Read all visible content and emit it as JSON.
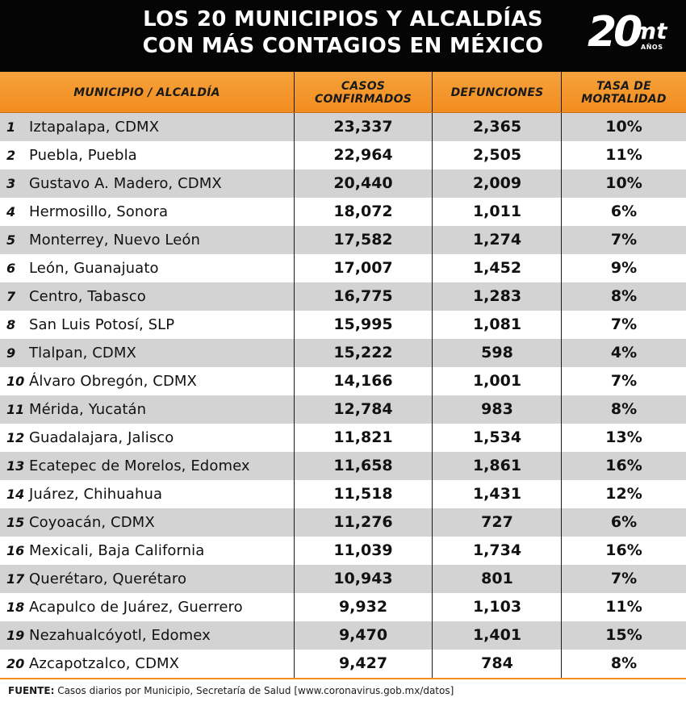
{
  "header": {
    "title_line1": "LOS 20 MUNICIPIOS Y ALCALDÍAS",
    "title_line2": "CON MÁS CONTAGIOS EN MÉXICO",
    "logo_number": "20",
    "logo_brand": "mt",
    "logo_years": "AÑOS"
  },
  "chart_data": {
    "type": "table",
    "columns": [
      "MUNICIPIO / ALCALDÍA",
      "CASOS CONFIRMADOS",
      "DEFUNCIONES",
      "TASA DE MORTALIDAD"
    ],
    "header_lines": [
      [
        "MUNICIPIO / ALCALDÍA"
      ],
      [
        "CASOS",
        "CONFIRMADOS"
      ],
      [
        "DEFUNCIONES"
      ],
      [
        "TASA DE",
        "MORTALIDAD"
      ]
    ],
    "rows": [
      {
        "rank": "1",
        "name": "Iztapalapa, CDMX",
        "cases": "23,337",
        "deaths": "2,365",
        "rate": "10%"
      },
      {
        "rank": "2",
        "name": "Puebla, Puebla",
        "cases": "22,964",
        "deaths": "2,505",
        "rate": "11%"
      },
      {
        "rank": "3",
        "name": "Gustavo A. Madero, CDMX",
        "cases": "20,440",
        "deaths": "2,009",
        "rate": "10%"
      },
      {
        "rank": "4",
        "name": "Hermosillo, Sonora",
        "cases": "18,072",
        "deaths": "1,011",
        "rate": "6%"
      },
      {
        "rank": "5",
        "name": "Monterrey, Nuevo León",
        "cases": "17,582",
        "deaths": "1,274",
        "rate": "7%"
      },
      {
        "rank": "6",
        "name": "León, Guanajuato",
        "cases": "17,007",
        "deaths": "1,452",
        "rate": "9%"
      },
      {
        "rank": "7",
        "name": "Centro, Tabasco",
        "cases": "16,775",
        "deaths": "1,283",
        "rate": "8%"
      },
      {
        "rank": "8",
        "name": "San Luis Potosí, SLP",
        "cases": "15,995",
        "deaths": "1,081",
        "rate": "7%"
      },
      {
        "rank": "9",
        "name": "Tlalpan, CDMX",
        "cases": "15,222",
        "deaths": "598",
        "rate": "4%"
      },
      {
        "rank": "10",
        "name": "Álvaro Obregón, CDMX",
        "cases": "14,166",
        "deaths": "1,001",
        "rate": "7%"
      },
      {
        "rank": "11",
        "name": "Mérida, Yucatán",
        "cases": "12,784",
        "deaths": "983",
        "rate": "8%"
      },
      {
        "rank": "12",
        "name": "Guadalajara, Jalisco",
        "cases": "11,821",
        "deaths": "1,534",
        "rate": "13%"
      },
      {
        "rank": "13",
        "name": "Ecatepec de Morelos, Edomex",
        "cases": "11,658",
        "deaths": "1,861",
        "rate": "16%"
      },
      {
        "rank": "14",
        "name": "Juárez, Chihuahua",
        "cases": "11,518",
        "deaths": "1,431",
        "rate": "12%"
      },
      {
        "rank": "15",
        "name": "Coyoacán, CDMX",
        "cases": "11,276",
        "deaths": "727",
        "rate": "6%"
      },
      {
        "rank": "16",
        "name": "Mexicali, Baja California",
        "cases": "11,039",
        "deaths": "1,734",
        "rate": "16%"
      },
      {
        "rank": "17",
        "name": "Querétaro, Querétaro",
        "cases": "10,943",
        "deaths": "801",
        "rate": "7%"
      },
      {
        "rank": "18",
        "name": "Acapulco de Juárez, Guerrero",
        "cases": "9,932",
        "deaths": "1,103",
        "rate": "11%"
      },
      {
        "rank": "19",
        "name": "Nezahualcóyotl, Edomex",
        "cases": "9,470",
        "deaths": "1,401",
        "rate": "15%"
      },
      {
        "rank": "20",
        "name": "Azcapotzalco, CDMX",
        "cases": "9,427",
        "deaths": "784",
        "rate": "8%"
      }
    ]
  },
  "footer": {
    "label": "FUENTE:",
    "text": " Casos diarios por Municipio, Secretaría de Salud [www.coronavirus.gob.mx/datos]"
  },
  "colors": {
    "header_bg": "#050505",
    "column_header": "#f28d1f",
    "row_shaded": "#d3d3d3",
    "row_plain": "#ffffff"
  }
}
